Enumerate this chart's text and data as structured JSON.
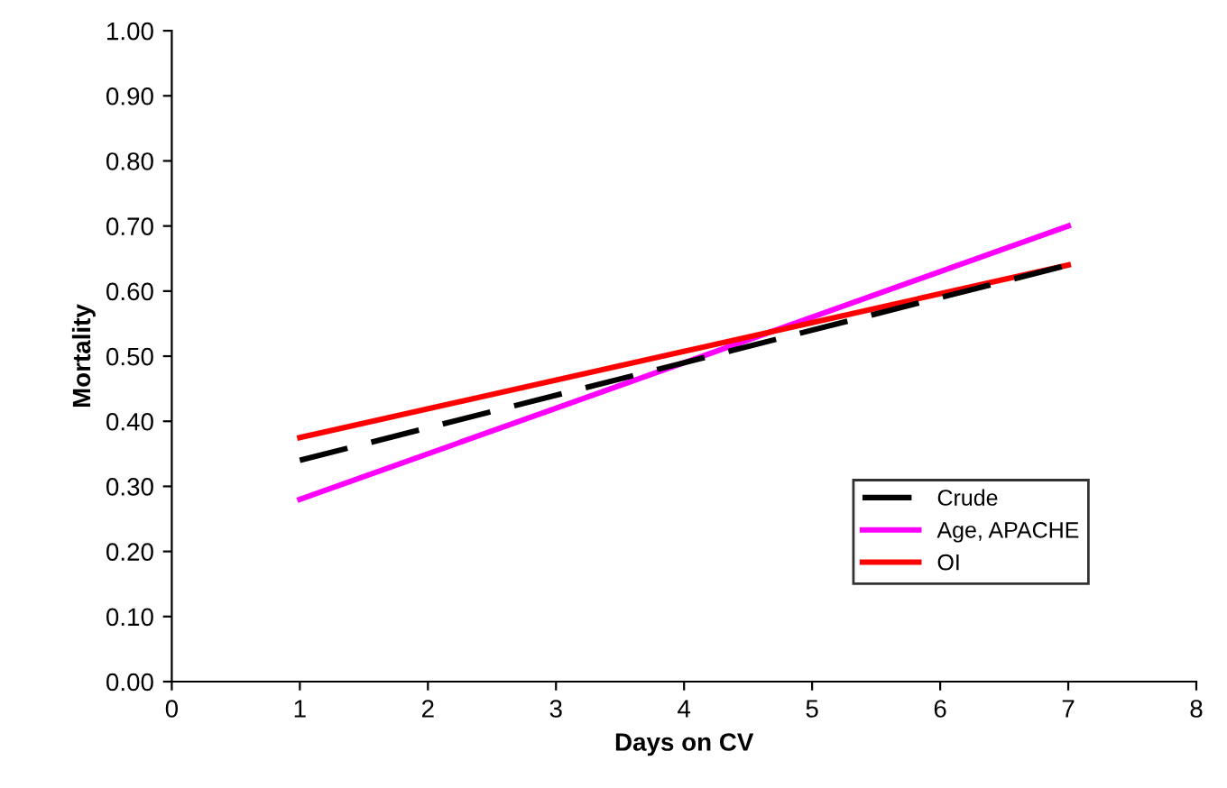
{
  "chart_data": {
    "type": "line",
    "xlabel": "Days on CV",
    "ylabel": "Mortality",
    "x": [
      1,
      7
    ],
    "series": [
      {
        "name": "Crude",
        "color": "#000000",
        "values": [
          0.34,
          0.64
        ],
        "line_style": "dashed"
      },
      {
        "name": "Age, APACHE",
        "color": "#ff00ff",
        "values": [
          0.28,
          0.7
        ],
        "line_style": "solid"
      },
      {
        "name": "OI",
        "color": "#ff0000",
        "values": [
          0.375,
          0.64
        ],
        "line_style": "solid"
      }
    ],
    "xlim": [
      0,
      8
    ],
    "xticks": [
      0,
      1,
      2,
      3,
      4,
      5,
      6,
      7,
      8
    ],
    "ylim": [
      0,
      1
    ],
    "yticks": [
      {
        "value": 0,
        "label": "0.00"
      },
      {
        "value": 0.1,
        "label": "0.10"
      },
      {
        "value": 0.2,
        "label": "0.20"
      },
      {
        "value": 0.3,
        "label": "0.30"
      },
      {
        "value": 0.4,
        "label": "0.40"
      },
      {
        "value": 0.5,
        "label": "0.50"
      },
      {
        "value": 0.6,
        "label": "0.60"
      },
      {
        "value": 0.7,
        "label": "0.70"
      },
      {
        "value": 0.8,
        "label": "0.80"
      },
      {
        "value": 0.9,
        "label": "0.90"
      },
      {
        "value": 1,
        "label": "1.00"
      }
    ],
    "grid": false,
    "legend": "bottom right",
    "marker": "none"
  }
}
